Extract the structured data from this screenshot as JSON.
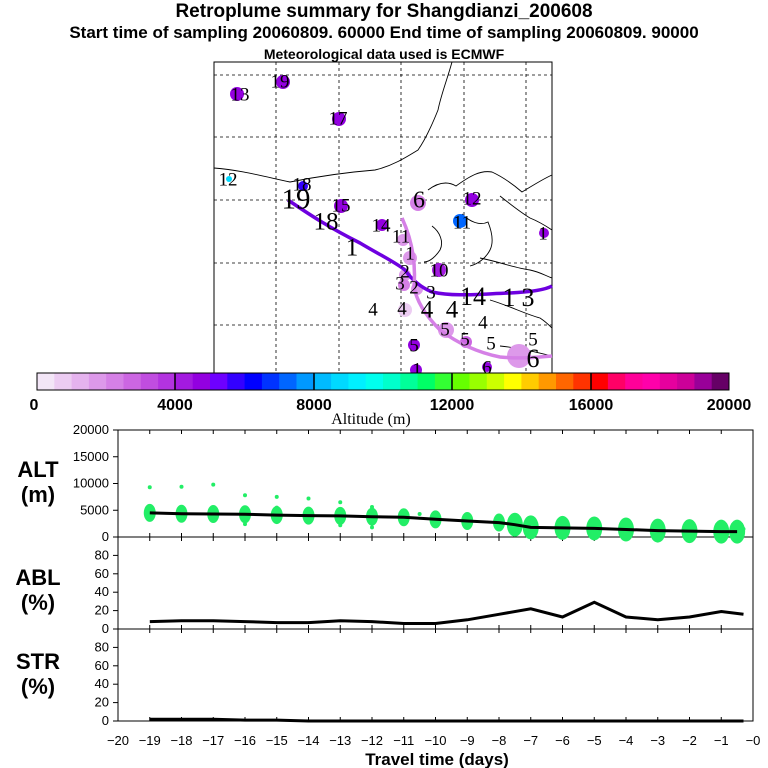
{
  "header": {
    "title": "Retroplume summary for Shangdianzi_200608",
    "subtitle": "Start time of sampling 20060809. 60000     End time of sampling 20060809. 90000",
    "met_line": "Meteorological data used is ECMWF"
  },
  "colorbar": {
    "label": "Altitude (m)",
    "ticks": [
      "0",
      "4000",
      "8000",
      "12000",
      "16000",
      "20000"
    ],
    "colors": [
      "#f3e6f7",
      "#ecccf2",
      "#e5b3ee",
      "#dd99ea",
      "#d580e6",
      "#cc66e2",
      "#c04de0",
      "#b333e0",
      "#a31ae0",
      "#9300e0",
      "#6e00ff",
      "#3300ff",
      "#0000ff",
      "#0033ff",
      "#0066ff",
      "#0099ff",
      "#00bbff",
      "#00d9ff",
      "#00f0ff",
      "#00ffee",
      "#00ffcc",
      "#00ff99",
      "#00ff66",
      "#33ff33",
      "#66ff00",
      "#99ff00",
      "#ccff00",
      "#ffff00",
      "#ffcc00",
      "#ff9900",
      "#ff6600",
      "#ff3300",
      "#ff0000",
      "#ff0066",
      "#ff0099",
      "#ff00aa",
      "#e6009e",
      "#cc0099",
      "#990099",
      "#660066"
    ]
  },
  "map": {
    "labels": [
      {
        "t": "13",
        "x": 240,
        "y": 96,
        "s": 19
      },
      {
        "t": "19",
        "x": 280,
        "y": 83,
        "s": 19
      },
      {
        "t": "17",
        "x": 338,
        "y": 120,
        "s": 19
      },
      {
        "t": "12",
        "x": 228,
        "y": 181,
        "s": 19
      },
      {
        "t": "18",
        "x": 302,
        "y": 186,
        "s": 19
      },
      {
        "t": "19",
        "x": 296,
        "y": 202,
        "s": 29
      },
      {
        "t": "15",
        "x": 341,
        "y": 207,
        "s": 19
      },
      {
        "t": "18",
        "x": 326,
        "y": 224,
        "s": 25
      },
      {
        "t": "6",
        "x": 419,
        "y": 202,
        "s": 24
      },
      {
        "t": "12",
        "x": 472,
        "y": 200,
        "s": 19
      },
      {
        "t": "11",
        "x": 462,
        "y": 224,
        "s": 19
      },
      {
        "t": "1",
        "x": 543,
        "y": 235,
        "s": 19
      },
      {
        "t": "14",
        "x": 381,
        "y": 227,
        "s": 19
      },
      {
        "t": "11",
        "x": 401,
        "y": 238,
        "s": 19
      },
      {
        "t": "1",
        "x": 352,
        "y": 250,
        "s": 25
      },
      {
        "t": "1",
        "x": 410,
        "y": 255,
        "s": 19
      },
      {
        "t": "2",
        "x": 405,
        "y": 273,
        "s": 19
      },
      {
        "t": "10",
        "x": 439,
        "y": 272,
        "s": 19
      },
      {
        "t": "3",
        "x": 400,
        "y": 285,
        "s": 19
      },
      {
        "t": "2",
        "x": 414,
        "y": 289,
        "s": 19
      },
      {
        "t": "3",
        "x": 431,
        "y": 294,
        "s": 19
      },
      {
        "t": "14",
        "x": 473,
        "y": 299,
        "s": 26
      },
      {
        "t": "1",
        "x": 509,
        "y": 300,
        "s": 26
      },
      {
        "t": "3",
        "x": 528,
        "y": 300,
        "s": 26
      },
      {
        "t": "4",
        "x": 373,
        "y": 311,
        "s": 19
      },
      {
        "t": "4",
        "x": 402,
        "y": 310,
        "s": 19
      },
      {
        "t": "4",
        "x": 427,
        "y": 312,
        "s": 25
      },
      {
        "t": "4",
        "x": 452,
        "y": 312,
        "s": 25
      },
      {
        "t": "4",
        "x": 483,
        "y": 324,
        "s": 19
      },
      {
        "t": "5",
        "x": 445,
        "y": 331,
        "s": 19
      },
      {
        "t": "5",
        "x": 491,
        "y": 345,
        "s": 19
      },
      {
        "t": "5",
        "x": 414,
        "y": 347,
        "s": 19
      },
      {
        "t": "5",
        "x": 465,
        "y": 341,
        "s": 19
      },
      {
        "t": "5",
        "x": 533,
        "y": 341,
        "s": 19
      },
      {
        "t": "6",
        "x": 533,
        "y": 361,
        "s": 26
      },
      {
        "t": "6",
        "x": 487,
        "y": 369,
        "s": 19
      },
      {
        "t": "1",
        "x": 417,
        "y": 371,
        "s": 19
      }
    ]
  },
  "panels": {
    "alt": {
      "label_top": "ALT",
      "label_bottom": "(m)",
      "ticks": [
        "0",
        "5000",
        "10000",
        "15000",
        "20000"
      ]
    },
    "abl": {
      "label_top": "ABL",
      "label_bottom": "(%)",
      "ticks": [
        "0",
        "20",
        "40",
        "60",
        "80"
      ]
    },
    "str": {
      "label_top": "STR",
      "label_bottom": "(%)",
      "ticks": [
        "0",
        "20",
        "40",
        "60",
        "80"
      ]
    }
  },
  "x_axis": {
    "label": "Travel time (days)",
    "ticks": [
      "−20",
      "−19",
      "−18",
      "−17",
      "−16",
      "−15",
      "−14",
      "−13",
      "−12",
      "−11",
      "−10",
      "−9",
      "−8",
      "−7",
      "−6",
      "−5",
      "−4",
      "−3",
      "−2",
      "−1",
      "−0"
    ]
  },
  "chart_data": [
    {
      "type": "line",
      "title": "ALT",
      "xlabel": "Travel time (days)",
      "ylabel": "Altitude (m)",
      "xlim": [
        -20,
        0
      ],
      "ylim": [
        0,
        20000
      ],
      "x": [
        -19,
        -18,
        -17,
        -16,
        -15,
        -14,
        -13,
        -12,
        -11,
        -10,
        -9,
        -8,
        -7.5,
        -7,
        -6,
        -5,
        -4,
        -3,
        -2,
        -1,
        -0.5
      ],
      "series": [
        {
          "name": "mean altitude",
          "values": [
            4500,
            4350,
            4300,
            4250,
            4100,
            4000,
            3950,
            3800,
            3700,
            3300,
            3000,
            2700,
            2300,
            1800,
            1700,
            1600,
            1400,
            1200,
            1100,
            1000,
            1000
          ]
        }
      ],
      "scatter": [
        {
          "x": -19,
          "y": 9300
        },
        {
          "x": -18,
          "y": 9400
        },
        {
          "x": -17,
          "y": 9800
        },
        {
          "x": -16,
          "y": 7800
        },
        {
          "x": -16,
          "y": 2400
        },
        {
          "x": -15,
          "y": 7500
        },
        {
          "x": -15,
          "y": 5500
        },
        {
          "x": -14,
          "y": 7200
        },
        {
          "x": -13,
          "y": 6500
        },
        {
          "x": -13,
          "y": 2200
        },
        {
          "x": -12,
          "y": 5600
        },
        {
          "x": -12,
          "y": 1800
        },
        {
          "x": -11,
          "y": 4800
        },
        {
          "x": -10.5,
          "y": 4300
        },
        {
          "x": -10,
          "y": 3500
        },
        {
          "x": -9,
          "y": 3900
        },
        {
          "x": -8,
          "y": 3500
        },
        {
          "x": -7.5,
          "y": 2600
        },
        {
          "x": -7,
          "y": 1500
        },
        {
          "x": -6,
          "y": 1800
        },
        {
          "x": -5,
          "y": 1600
        },
        {
          "x": -4,
          "y": 1400
        },
        {
          "x": -3,
          "y": 1200
        },
        {
          "x": -2,
          "y": 1100
        },
        {
          "x": -1,
          "y": 1000
        },
        {
          "x": -0.3,
          "y": 1500
        }
      ]
    },
    {
      "type": "line",
      "title": "ABL",
      "xlabel": "Travel time (days)",
      "ylabel": "ABL (%)",
      "xlim": [
        -20,
        0
      ],
      "ylim": [
        0,
        100
      ],
      "x": [
        -19,
        -18,
        -17,
        -16,
        -15,
        -14,
        -13,
        -12,
        -11,
        -10,
        -9,
        -8,
        -7,
        -6,
        -5,
        -4,
        -3,
        -2,
        -1,
        -0.3
      ],
      "series": [
        {
          "name": "ABL fraction",
          "values": [
            8,
            9,
            9,
            8,
            7,
            7,
            9,
            8,
            6,
            6,
            10,
            16,
            22,
            13,
            29,
            13,
            10,
            13,
            19,
            16
          ]
        }
      ]
    },
    {
      "type": "line",
      "title": "STR",
      "xlabel": "Travel time (days)",
      "ylabel": "STR (%)",
      "xlim": [
        -20,
        0
      ],
      "ylim": [
        0,
        100
      ],
      "x": [
        -19,
        -18,
        -17,
        -16,
        -15,
        -14,
        -13,
        -12,
        -11,
        -10,
        -9,
        -8,
        -7,
        -6,
        -5,
        -4,
        -3,
        -2,
        -1,
        -0.3
      ],
      "series": [
        {
          "name": "stratospheric fraction",
          "values": [
            2,
            2,
            2,
            1,
            1,
            0,
            0,
            0,
            0,
            0,
            0,
            0,
            0,
            0,
            0,
            0,
            0,
            0,
            0,
            0
          ]
        }
      ]
    }
  ]
}
